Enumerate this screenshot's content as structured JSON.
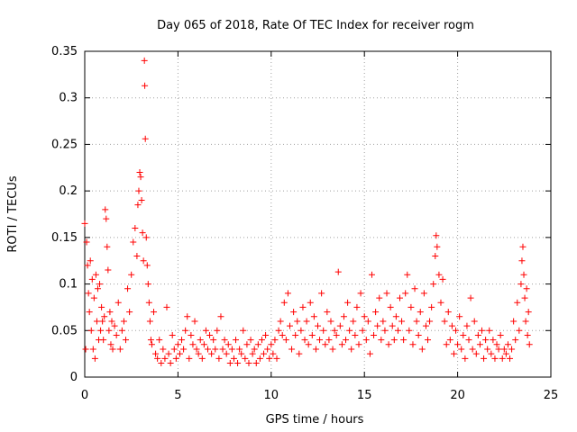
{
  "chart_data": {
    "type": "scatter",
    "title": "Day 065 of 2018, Rate Of TEC Index for receiver rogm",
    "xlabel": "GPS time / hours",
    "ylabel": "ROTI / TECUs",
    "xlim": [
      0,
      25
    ],
    "ylim": [
      0,
      0.35
    ],
    "xticks": [
      0,
      5,
      10,
      15,
      20,
      25
    ],
    "xtick_labels": [
      "0",
      "5",
      "10",
      "15",
      "20",
      "25"
    ],
    "yticks": [
      0,
      0.05,
      0.1,
      0.15,
      0.2,
      0.25,
      0.3,
      0.35
    ],
    "ytick_labels": [
      "0",
      "0.05",
      "0.1",
      "0.15",
      "0.2",
      "0.25",
      "0.3",
      "0.35"
    ],
    "grid": true,
    "marker": "+",
    "color": "#ff0000",
    "series": [
      {
        "name": "ROTI",
        "points": [
          [
            0.0,
            0.165
          ],
          [
            0.05,
            0.03
          ],
          [
            0.1,
            0.145
          ],
          [
            0.15,
            0.12
          ],
          [
            0.2,
            0.09
          ],
          [
            0.25,
            0.07
          ],
          [
            0.3,
            0.125
          ],
          [
            0.35,
            0.05
          ],
          [
            0.4,
            0.105
          ],
          [
            0.45,
            0.03
          ],
          [
            0.5,
            0.085
          ],
          [
            0.55,
            0.02
          ],
          [
            0.6,
            0.11
          ],
          [
            0.65,
            0.06
          ],
          [
            0.7,
            0.095
          ],
          [
            0.75,
            0.04
          ],
          [
            0.8,
            0.1
          ],
          [
            0.85,
            0.05
          ],
          [
            0.9,
            0.075
          ],
          [
            0.95,
            0.06
          ],
          [
            1.0,
            0.04
          ],
          [
            1.05,
            0.065
          ],
          [
            1.1,
            0.18
          ],
          [
            1.15,
            0.17
          ],
          [
            1.2,
            0.14
          ],
          [
            1.25,
            0.115
          ],
          [
            1.3,
            0.05
          ],
          [
            1.35,
            0.07
          ],
          [
            1.4,
            0.035
          ],
          [
            1.45,
            0.06
          ],
          [
            1.5,
            0.03
          ],
          [
            1.6,
            0.055
          ],
          [
            1.7,
            0.045
          ],
          [
            1.8,
            0.08
          ],
          [
            1.9,
            0.03
          ],
          [
            2.0,
            0.05
          ],
          [
            2.1,
            0.06
          ],
          [
            2.2,
            0.04
          ],
          [
            2.3,
            0.095
          ],
          [
            2.4,
            0.07
          ],
          [
            2.5,
            0.11
          ],
          [
            2.6,
            0.145
          ],
          [
            2.7,
            0.16
          ],
          [
            2.8,
            0.13
          ],
          [
            2.85,
            0.185
          ],
          [
            2.9,
            0.2
          ],
          [
            2.95,
            0.22
          ],
          [
            3.0,
            0.215
          ],
          [
            3.05,
            0.19
          ],
          [
            3.1,
            0.155
          ],
          [
            3.15,
            0.125
          ],
          [
            3.2,
            0.34
          ],
          [
            3.22,
            0.313
          ],
          [
            3.25,
            0.256
          ],
          [
            3.3,
            0.15
          ],
          [
            3.35,
            0.12
          ],
          [
            3.4,
            0.1
          ],
          [
            3.45,
            0.08
          ],
          [
            3.5,
            0.06
          ],
          [
            3.55,
            0.04
          ],
          [
            3.6,
            0.035
          ],
          [
            3.7,
            0.07
          ],
          [
            3.8,
            0.025
          ],
          [
            3.9,
            0.02
          ],
          [
            4.0,
            0.04
          ],
          [
            4.1,
            0.015
          ],
          [
            4.2,
            0.03
          ],
          [
            4.3,
            0.02
          ],
          [
            4.4,
            0.075
          ],
          [
            4.5,
            0.025
          ],
          [
            4.6,
            0.015
          ],
          [
            4.7,
            0.045
          ],
          [
            4.8,
            0.03
          ],
          [
            4.9,
            0.02
          ],
          [
            5.0,
            0.035
          ],
          [
            5.1,
            0.025
          ],
          [
            5.2,
            0.04
          ],
          [
            5.3,
            0.03
          ],
          [
            5.4,
            0.05
          ],
          [
            5.5,
            0.065
          ],
          [
            5.6,
            0.02
          ],
          [
            5.7,
            0.045
          ],
          [
            5.8,
            0.035
          ],
          [
            5.9,
            0.06
          ],
          [
            6.0,
            0.03
          ],
          [
            6.1,
            0.025
          ],
          [
            6.2,
            0.04
          ],
          [
            6.3,
            0.02
          ],
          [
            6.4,
            0.035
          ],
          [
            6.5,
            0.05
          ],
          [
            6.6,
            0.03
          ],
          [
            6.7,
            0.045
          ],
          [
            6.8,
            0.025
          ],
          [
            6.9,
            0.04
          ],
          [
            7.0,
            0.03
          ],
          [
            7.1,
            0.05
          ],
          [
            7.2,
            0.02
          ],
          [
            7.3,
            0.065
          ],
          [
            7.4,
            0.03
          ],
          [
            7.5,
            0.04
          ],
          [
            7.6,
            0.025
          ],
          [
            7.7,
            0.035
          ],
          [
            7.8,
            0.015
          ],
          [
            7.9,
            0.03
          ],
          [
            8.0,
            0.02
          ],
          [
            8.1,
            0.04
          ],
          [
            8.2,
            0.015
          ],
          [
            8.3,
            0.03
          ],
          [
            8.4,
            0.025
          ],
          [
            8.5,
            0.05
          ],
          [
            8.6,
            0.02
          ],
          [
            8.7,
            0.035
          ],
          [
            8.8,
            0.015
          ],
          [
            8.9,
            0.04
          ],
          [
            9.0,
            0.025
          ],
          [
            9.1,
            0.03
          ],
          [
            9.2,
            0.015
          ],
          [
            9.3,
            0.035
          ],
          [
            9.4,
            0.02
          ],
          [
            9.5,
            0.04
          ],
          [
            9.6,
            0.025
          ],
          [
            9.7,
            0.045
          ],
          [
            9.8,
            0.03
          ],
          [
            9.9,
            0.02
          ],
          [
            10.0,
            0.035
          ],
          [
            10.1,
            0.025
          ],
          [
            10.2,
            0.04
          ],
          [
            10.3,
            0.02
          ],
          [
            10.4,
            0.05
          ],
          [
            10.5,
            0.06
          ],
          [
            10.6,
            0.045
          ],
          [
            10.7,
            0.08
          ],
          [
            10.8,
            0.04
          ],
          [
            10.9,
            0.09
          ],
          [
            11.0,
            0.055
          ],
          [
            11.1,
            0.03
          ],
          [
            11.2,
            0.07
          ],
          [
            11.3,
            0.045
          ],
          [
            11.4,
            0.06
          ],
          [
            11.5,
            0.025
          ],
          [
            11.6,
            0.05
          ],
          [
            11.7,
            0.075
          ],
          [
            11.8,
            0.04
          ],
          [
            11.9,
            0.06
          ],
          [
            12.0,
            0.035
          ],
          [
            12.1,
            0.08
          ],
          [
            12.2,
            0.045
          ],
          [
            12.3,
            0.065
          ],
          [
            12.4,
            0.03
          ],
          [
            12.5,
            0.055
          ],
          [
            12.6,
            0.04
          ],
          [
            12.7,
            0.09
          ],
          [
            12.8,
            0.05
          ],
          [
            12.9,
            0.035
          ],
          [
            13.0,
            0.07
          ],
          [
            13.1,
            0.04
          ],
          [
            13.2,
            0.06
          ],
          [
            13.3,
            0.03
          ],
          [
            13.4,
            0.05
          ],
          [
            13.5,
            0.045
          ],
          [
            13.6,
            0.113
          ],
          [
            13.7,
            0.055
          ],
          [
            13.8,
            0.035
          ],
          [
            13.9,
            0.065
          ],
          [
            14.0,
            0.04
          ],
          [
            14.1,
            0.08
          ],
          [
            14.2,
            0.05
          ],
          [
            14.3,
            0.03
          ],
          [
            14.4,
            0.06
          ],
          [
            14.5,
            0.045
          ],
          [
            14.6,
            0.075
          ],
          [
            14.7,
            0.035
          ],
          [
            14.8,
            0.09
          ],
          [
            14.9,
            0.05
          ],
          [
            15.0,
            0.065
          ],
          [
            15.1,
            0.04
          ],
          [
            15.2,
            0.06
          ],
          [
            15.3,
            0.025
          ],
          [
            15.4,
            0.11
          ],
          [
            15.5,
            0.045
          ],
          [
            15.6,
            0.07
          ],
          [
            15.7,
            0.055
          ],
          [
            15.8,
            0.085
          ],
          [
            15.9,
            0.04
          ],
          [
            16.0,
            0.06
          ],
          [
            16.1,
            0.05
          ],
          [
            16.2,
            0.09
          ],
          [
            16.3,
            0.035
          ],
          [
            16.4,
            0.075
          ],
          [
            16.5,
            0.055
          ],
          [
            16.6,
            0.04
          ],
          [
            16.7,
            0.065
          ],
          [
            16.8,
            0.05
          ],
          [
            16.9,
            0.085
          ],
          [
            17.0,
            0.06
          ],
          [
            17.1,
            0.04
          ],
          [
            17.2,
            0.09
          ],
          [
            17.3,
            0.11
          ],
          [
            17.4,
            0.05
          ],
          [
            17.5,
            0.075
          ],
          [
            17.6,
            0.035
          ],
          [
            17.7,
            0.095
          ],
          [
            17.8,
            0.06
          ],
          [
            17.9,
            0.045
          ],
          [
            18.0,
            0.07
          ],
          [
            18.1,
            0.03
          ],
          [
            18.2,
            0.09
          ],
          [
            18.3,
            0.055
          ],
          [
            18.4,
            0.04
          ],
          [
            18.5,
            0.06
          ],
          [
            18.6,
            0.075
          ],
          [
            18.7,
            0.1
          ],
          [
            18.8,
            0.13
          ],
          [
            18.85,
            0.152
          ],
          [
            18.9,
            0.14
          ],
          [
            19.0,
            0.11
          ],
          [
            19.1,
            0.08
          ],
          [
            19.2,
            0.105
          ],
          [
            19.3,
            0.06
          ],
          [
            19.4,
            0.035
          ],
          [
            19.5,
            0.07
          ],
          [
            19.6,
            0.04
          ],
          [
            19.7,
            0.055
          ],
          [
            19.8,
            0.025
          ],
          [
            19.9,
            0.05
          ],
          [
            20.0,
            0.035
          ],
          [
            20.1,
            0.065
          ],
          [
            20.2,
            0.03
          ],
          [
            20.3,
            0.045
          ],
          [
            20.4,
            0.02
          ],
          [
            20.5,
            0.055
          ],
          [
            20.6,
            0.04
          ],
          [
            20.7,
            0.085
          ],
          [
            20.8,
            0.03
          ],
          [
            20.9,
            0.06
          ],
          [
            21.0,
            0.025
          ],
          [
            21.1,
            0.045
          ],
          [
            21.2,
            0.035
          ],
          [
            21.3,
            0.05
          ],
          [
            21.4,
            0.02
          ],
          [
            21.5,
            0.04
          ],
          [
            21.6,
            0.03
          ],
          [
            21.7,
            0.05
          ],
          [
            21.8,
            0.025
          ],
          [
            21.9,
            0.04
          ],
          [
            22.0,
            0.02
          ],
          [
            22.1,
            0.035
          ],
          [
            22.2,
            0.03
          ],
          [
            22.3,
            0.045
          ],
          [
            22.4,
            0.02
          ],
          [
            22.5,
            0.03
          ],
          [
            22.6,
            0.025
          ],
          [
            22.7,
            0.035
          ],
          [
            22.8,
            0.02
          ],
          [
            22.9,
            0.03
          ],
          [
            23.0,
            0.06
          ],
          [
            23.1,
            0.04
          ],
          [
            23.2,
            0.08
          ],
          [
            23.3,
            0.05
          ],
          [
            23.4,
            0.1
          ],
          [
            23.45,
            0.125
          ],
          [
            23.5,
            0.14
          ],
          [
            23.55,
            0.11
          ],
          [
            23.6,
            0.085
          ],
          [
            23.65,
            0.06
          ],
          [
            23.7,
            0.095
          ],
          [
            23.75,
            0.045
          ],
          [
            23.8,
            0.07
          ],
          [
            23.85,
            0.035
          ]
        ]
      }
    ]
  }
}
